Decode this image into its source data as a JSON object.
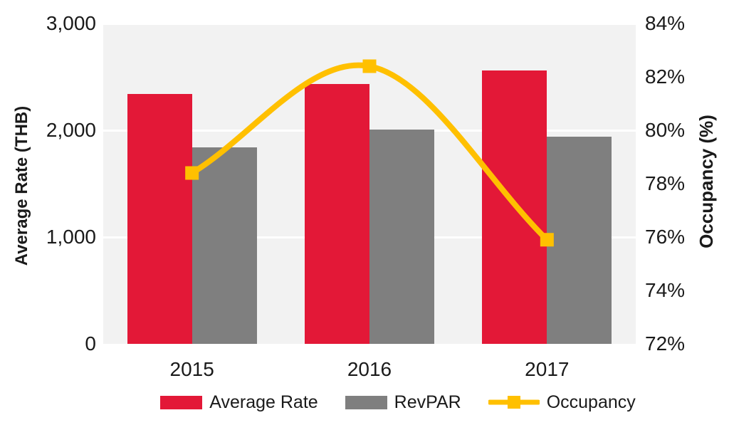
{
  "chart_data": {
    "type": "bar",
    "subtype": "combo-bar-line-dual-axis",
    "title": "",
    "categories": [
      "2015",
      "2016",
      "2017"
    ],
    "series": [
      {
        "name": "Average Rate",
        "type": "bar",
        "axis": "left",
        "color": "#E31837",
        "values": [
          2340,
          2435,
          2560
        ]
      },
      {
        "name": "RevPAR",
        "type": "bar",
        "axis": "left",
        "color": "#7F7F7F",
        "values": [
          1840,
          2010,
          1940
        ]
      },
      {
        "name": "Occupancy",
        "type": "line",
        "axis": "right",
        "color": "#FFC000",
        "marker": "square",
        "values": [
          78.4,
          82.4,
          75.9
        ]
      }
    ],
    "left_axis": {
      "title": "Average Rate (THB)",
      "min": 0,
      "max": 3000,
      "step": 1000,
      "tick_labels": [
        "3,000",
        "2,000",
        "1,000",
        "0"
      ]
    },
    "right_axis": {
      "title": "Occupancy (%)",
      "min": 72,
      "max": 84,
      "step": 2,
      "tick_labels": [
        "84%",
        "82%",
        "80%",
        "78%",
        "76%",
        "74%",
        "72%"
      ]
    },
    "legend": {
      "position": "bottom",
      "items": [
        "Average Rate",
        "RevPAR",
        "Occupancy"
      ]
    },
    "grid": {
      "on": true,
      "color": "#FFFFFF",
      "lines_at_left_values": [
        1000,
        2000,
        3000
      ]
    },
    "plot_background": "#F2F2F2",
    "text_color": "#1a1a1a"
  }
}
